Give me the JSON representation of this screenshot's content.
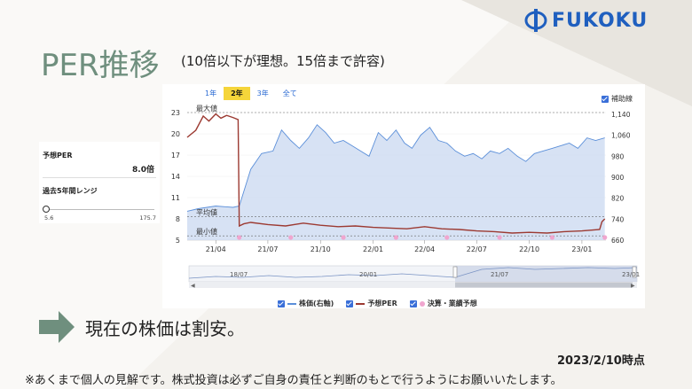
{
  "logo": {
    "text": "FUKOKU",
    "brand_color": "#1f5fbf",
    "mark_icon": "phi-mark-icon"
  },
  "header": {
    "title": "PER推移",
    "subtitle": "(10倍以下が理想。15倍まで許容)"
  },
  "left_panel": {
    "per_label": "予想PER",
    "per_value": "8.0倍",
    "range_label": "過去5年間レンジ",
    "range_min": "5.6",
    "range_max": "175.7"
  },
  "tabs": [
    {
      "label": "1年",
      "active": false
    },
    {
      "label": "2年",
      "active": true
    },
    {
      "label": "3年",
      "active": false
    },
    {
      "label": "全て",
      "active": false
    }
  ],
  "aux_label": "補助線",
  "legend": {
    "price": "株価(右軸)",
    "per": "予想PER",
    "earnings": "決算・業績予想"
  },
  "navigator_labels": [
    "18/07",
    "20/01",
    "21/07",
    "23/01"
  ],
  "chart_data": {
    "type": "line",
    "x_ticks": [
      "21/04",
      "21/07",
      "21/10",
      "22/01",
      "22/04",
      "22/07",
      "22/10",
      "23/01"
    ],
    "y_left_ticks": [
      "5",
      "8",
      "11",
      "14",
      "17",
      "20",
      "23"
    ],
    "y_left_lim": [
      5,
      23.5
    ],
    "y_right_ticks": [
      "660",
      "740",
      "820",
      "900",
      "980",
      "1,060",
      "1,140"
    ],
    "y_right_lim": [
      660,
      1160
    ],
    "annotations": {
      "max": "最大値",
      "avg": "平均値",
      "min": "最小値"
    },
    "reference_lines": {
      "max": 23,
      "avg": 8.3,
      "min": 5.6
    },
    "colors": {
      "price": "#5b8fd9",
      "price_fill": "#c9d8f0",
      "per": "#9c3a32",
      "earnings": "#f0a6cf"
    },
    "series": [
      {
        "name": "予想PER",
        "axis": "left",
        "x": [
          "2021-02-10",
          "2021-02-25",
          "2021-03-10",
          "2021-03-20",
          "2021-04-01",
          "2021-04-10",
          "2021-04-20",
          "2021-05-01",
          "2021-05-10",
          "2021-05-12",
          "2021-05-20",
          "2021-06-01",
          "2021-07-01",
          "2021-08-01",
          "2021-09-01",
          "2021-10-01",
          "2021-11-01",
          "2021-12-01",
          "2022-01-01",
          "2022-02-01",
          "2022-03-01",
          "2022-04-01",
          "2022-05-01",
          "2022-06-01",
          "2022-07-01",
          "2022-08-01",
          "2022-09-01",
          "2022-10-01",
          "2022-11-01",
          "2022-12-01",
          "2023-01-01",
          "2023-02-01",
          "2023-02-05",
          "2023-02-10"
        ],
        "y": [
          19.5,
          20.5,
          22.5,
          21.8,
          22.8,
          22.2,
          22.6,
          22.3,
          22.0,
          7.0,
          7.3,
          7.5,
          7.2,
          7.0,
          7.4,
          7.1,
          6.9,
          7.0,
          6.8,
          6.7,
          6.6,
          6.9,
          6.6,
          6.5,
          6.3,
          6.2,
          6.0,
          6.1,
          6.0,
          6.2,
          6.3,
          6.5,
          7.6,
          8.0
        ]
      },
      {
        "name": "株価(右軸)",
        "axis": "right",
        "x": [
          "2021-02-10",
          "2021-03-01",
          "2021-04-01",
          "2021-05-01",
          "2021-05-12",
          "2021-06-01",
          "2021-06-20",
          "2021-07-10",
          "2021-07-25",
          "2021-08-10",
          "2021-08-25",
          "2021-09-10",
          "2021-09-25",
          "2021-10-10",
          "2021-10-25",
          "2021-11-10",
          "2021-11-25",
          "2021-12-10",
          "2021-12-25",
          "2022-01-10",
          "2022-01-25",
          "2022-02-10",
          "2022-02-25",
          "2022-03-10",
          "2022-03-25",
          "2022-04-10",
          "2022-04-25",
          "2022-05-10",
          "2022-05-25",
          "2022-06-10",
          "2022-06-25",
          "2022-07-10",
          "2022-07-25",
          "2022-08-10",
          "2022-08-25",
          "2022-09-10",
          "2022-09-25",
          "2022-10-10",
          "2022-10-25",
          "2022-11-10",
          "2022-11-25",
          "2022-12-10",
          "2022-12-25",
          "2023-01-10",
          "2023-01-25",
          "2023-02-10"
        ],
        "y": [
          770,
          780,
          790,
          785,
          790,
          930,
          990,
          1000,
          1080,
          1040,
          1010,
          1050,
          1100,
          1070,
          1030,
          1040,
          1020,
          1000,
          980,
          1070,
          1040,
          1080,
          1030,
          1010,
          1060,
          1090,
          1040,
          1030,
          1000,
          980,
          990,
          970,
          1000,
          990,
          1010,
          980,
          960,
          990,
          1000,
          1010,
          1020,
          1030,
          1010,
          1050,
          1040,
          1050
        ]
      }
    ],
    "earnings_points": [
      "2021-05-12",
      "2021-08-10",
      "2021-11-10",
      "2022-02-10",
      "2022-05-10",
      "2022-08-10",
      "2022-11-10",
      "2023-02-10"
    ]
  },
  "conclusion": "現在の株価は割安。",
  "as_of": "2023/2/10時点",
  "disclaimer": "※あくまで個人の見解です。株式投資は必ずご自身の責任と判断のもとで行うようにお願いいたします。"
}
